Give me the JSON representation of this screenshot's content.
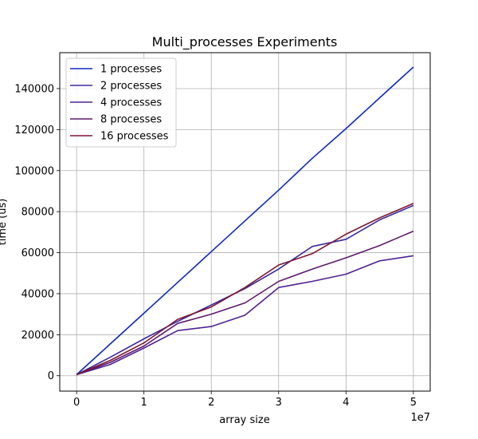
{
  "chart_data": {
    "type": "line",
    "title": "Multi_processes Experiments",
    "xlabel": "array size",
    "ylabel": "time (us)",
    "x_offset_label": "1e7",
    "xlim": [
      -0.25,
      5.25
    ],
    "ylim": [
      -7500,
      157500
    ],
    "x_ticks": [
      0,
      1,
      2,
      3,
      4,
      5
    ],
    "x_tick_labels": [
      "0",
      "1",
      "2",
      "3",
      "4",
      "5"
    ],
    "y_ticks": [
      0,
      20000,
      40000,
      60000,
      80000,
      100000,
      120000,
      140000
    ],
    "y_tick_labels": [
      "0",
      "20000",
      "40000",
      "60000",
      "80000",
      "100000",
      "120000",
      "140000"
    ],
    "grid": true,
    "legend_position": "top-left",
    "x": [
      0,
      0.5,
      1,
      1.5,
      2,
      2.5,
      3,
      3.5,
      4,
      4.5,
      5
    ],
    "series": [
      {
        "name": "1 processes",
        "color": "#1028c8",
        "values": [
          500,
          15500,
          30500,
          45500,
          60500,
          75500,
          90500,
          106000,
          120500,
          135500,
          150500
        ]
      },
      {
        "name": "2 processes",
        "color": "#3a2ba0",
        "values": [
          500,
          9000,
          18000,
          26500,
          34500,
          42500,
          52000,
          63000,
          66500,
          76000,
          83000
        ]
      },
      {
        "name": "4 processes",
        "color": "#4f2293",
        "values": [
          500,
          5500,
          13500,
          22000,
          24000,
          29500,
          43000,
          46000,
          49500,
          56000,
          58500
        ]
      },
      {
        "name": "8 processes",
        "color": "#5e1a6e",
        "values": [
          500,
          6500,
          14500,
          25500,
          30000,
          35500,
          46000,
          52000,
          57500,
          63500,
          70500
        ]
      },
      {
        "name": "16 processes",
        "color": "#7e1732",
        "values": [
          500,
          7500,
          16000,
          27500,
          33500,
          43000,
          54000,
          59500,
          69000,
          77000,
          84000
        ]
      }
    ]
  }
}
